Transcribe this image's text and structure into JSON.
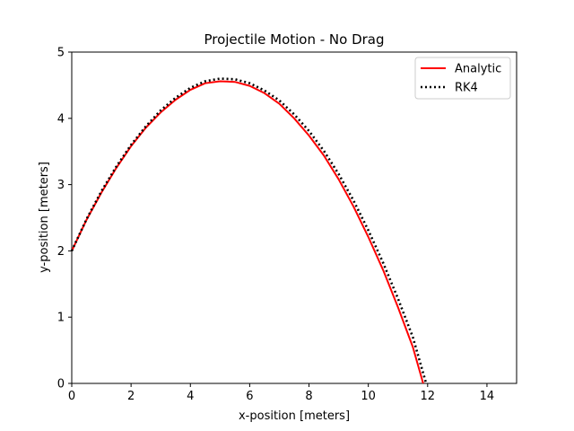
{
  "chart_data": {
    "type": "line",
    "title": "Projectile Motion - No Drag",
    "xlabel": "x-position [meters]",
    "ylabel": "y-position [meters]",
    "xlim": [
      0,
      15
    ],
    "ylim": [
      0,
      5
    ],
    "xticks": [
      0,
      2,
      4,
      6,
      8,
      10,
      12,
      14
    ],
    "yticks": [
      0,
      1,
      2,
      3,
      4,
      5
    ],
    "grid": false,
    "legend_position": "top-right",
    "series": [
      {
        "name": "Analytic",
        "color": "#ff0000",
        "style": "solid",
        "x": [
          0,
          0.5,
          1,
          1.5,
          2,
          2.5,
          3,
          3.5,
          4,
          4.5,
          5,
          5.5,
          6,
          6.5,
          7,
          7.5,
          8,
          8.5,
          9,
          9.5,
          10,
          10.5,
          11,
          11.5,
          11.85
        ],
        "y": [
          2.0,
          2.47,
          2.88,
          3.25,
          3.58,
          3.86,
          4.09,
          4.28,
          4.43,
          4.53,
          4.56,
          4.55,
          4.49,
          4.38,
          4.22,
          4.0,
          3.74,
          3.44,
          3.08,
          2.67,
          2.21,
          1.71,
          1.15,
          0.55,
          0.0
        ]
      },
      {
        "name": "RK4",
        "color": "#000000",
        "style": "dotted",
        "x": [
          0,
          0.5,
          1,
          1.5,
          2,
          2.5,
          3,
          3.5,
          4,
          4.5,
          5,
          5.5,
          6,
          6.5,
          7,
          7.5,
          8,
          8.5,
          9,
          9.5,
          10,
          10.5,
          11,
          11.5,
          11.95
        ],
        "y": [
          2.0,
          2.48,
          2.9,
          3.27,
          3.6,
          3.88,
          4.12,
          4.31,
          4.46,
          4.56,
          4.6,
          4.59,
          4.53,
          4.42,
          4.27,
          4.06,
          3.81,
          3.51,
          3.16,
          2.76,
          2.31,
          1.82,
          1.28,
          0.7,
          0.0
        ]
      }
    ]
  }
}
